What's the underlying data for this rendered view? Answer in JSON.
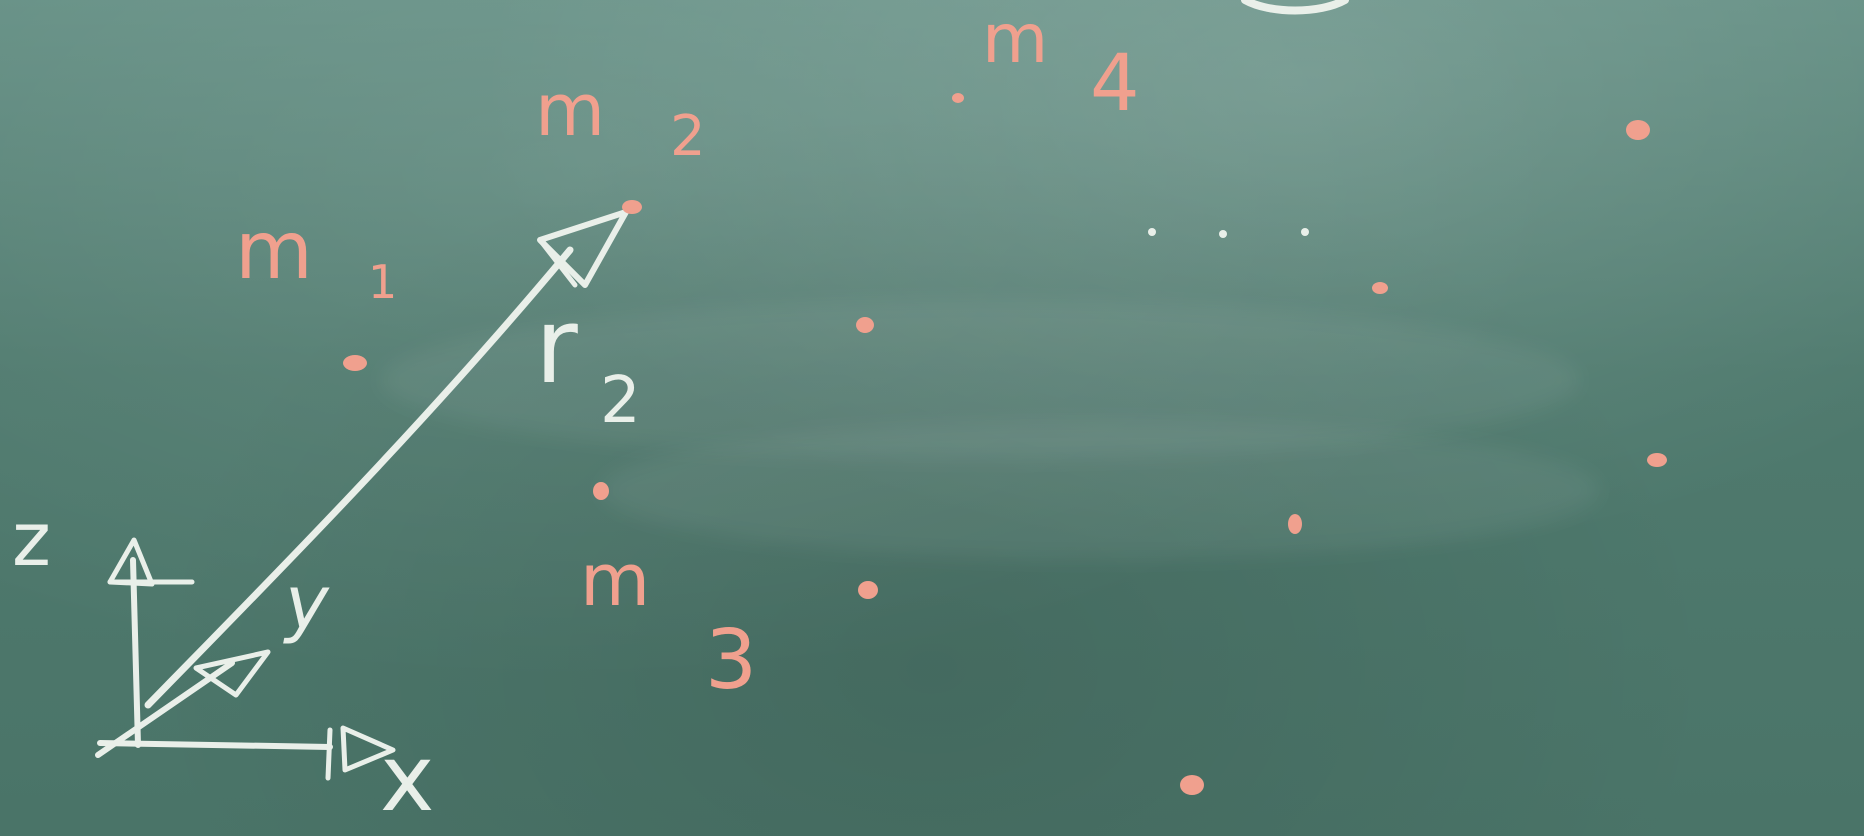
{
  "board": {
    "background_color": "#4f7a6e",
    "chalk_white": "#e9efe9",
    "chalk_pink": "#f0a08e"
  },
  "labels": {
    "axis_z": "z",
    "axis_y": "y",
    "axis_x": "x",
    "vector": "r",
    "vector_sub": "2",
    "mass_1": "m",
    "mass_1_sub": "1",
    "mass_2": "m",
    "mass_2_sub": "2",
    "mass_3": "m",
    "mass_3_sub": "3",
    "mass_4": "m",
    "mass_4_sub": "4"
  }
}
